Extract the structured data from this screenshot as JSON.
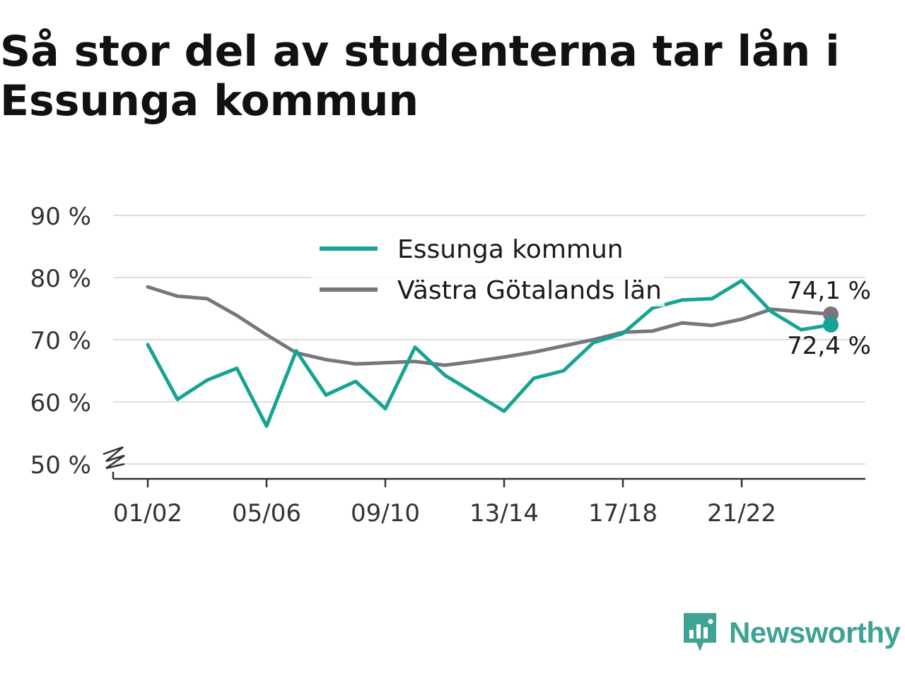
{
  "title": "Så stor del av studenterna tar lån i Essunga kommun",
  "brand": {
    "name": "Newsworthy",
    "icon": "newsworthy-logo-icon",
    "color": "#3fa295"
  },
  "chart_data": {
    "type": "line",
    "title": "Så stor del av studenterna tar lån i Essunga kommun",
    "xlabel": "",
    "ylabel": "",
    "ylim": [
      50,
      90
    ],
    "y_ticks": [
      "50 %",
      "60 %",
      "70 %",
      "80 %",
      "90 %"
    ],
    "y_tick_values": [
      50,
      60,
      70,
      80,
      90
    ],
    "y_axis_broken": true,
    "grid": true,
    "legend_position": "top-center",
    "x": [
      "00/01",
      "01/02",
      "02/03",
      "03/04",
      "04/05",
      "05/06",
      "06/07",
      "07/08",
      "08/09",
      "09/10",
      "10/11",
      "11/12",
      "12/13",
      "13/14",
      "14/15",
      "15/16",
      "16/17",
      "17/18",
      "18/19",
      "19/20",
      "20/21",
      "21/22",
      "22/23",
      "23/24",
      "24/25"
    ],
    "x_tick_labels": [
      "01/02",
      "05/06",
      "09/10",
      "13/14",
      "17/18",
      "21/22"
    ],
    "series": [
      {
        "name": "Essunga kommun",
        "color": "#16a394",
        "values": [
          null,
          69.2,
          60.4,
          63.5,
          65.4,
          56.1,
          68.2,
          61.1,
          63.3,
          58.9,
          68.8,
          64.3,
          61.4,
          58.5,
          63.8,
          65.0,
          69.5,
          71.0,
          75.1,
          76.4,
          76.6,
          79.5,
          74.5,
          71.6,
          72.4
        ],
        "end_label": "72,4 %"
      },
      {
        "name": "Västra Götalands län",
        "color": "#76767c",
        "values": [
          null,
          78.5,
          77.0,
          76.6,
          73.9,
          70.8,
          67.9,
          66.8,
          66.1,
          66.3,
          66.5,
          65.9,
          66.5,
          67.2,
          68.0,
          69.0,
          70.0,
          71.2,
          71.4,
          72.7,
          72.3,
          73.3,
          74.9,
          74.5,
          74.1
        ],
        "end_label": "74,1 %"
      }
    ]
  }
}
